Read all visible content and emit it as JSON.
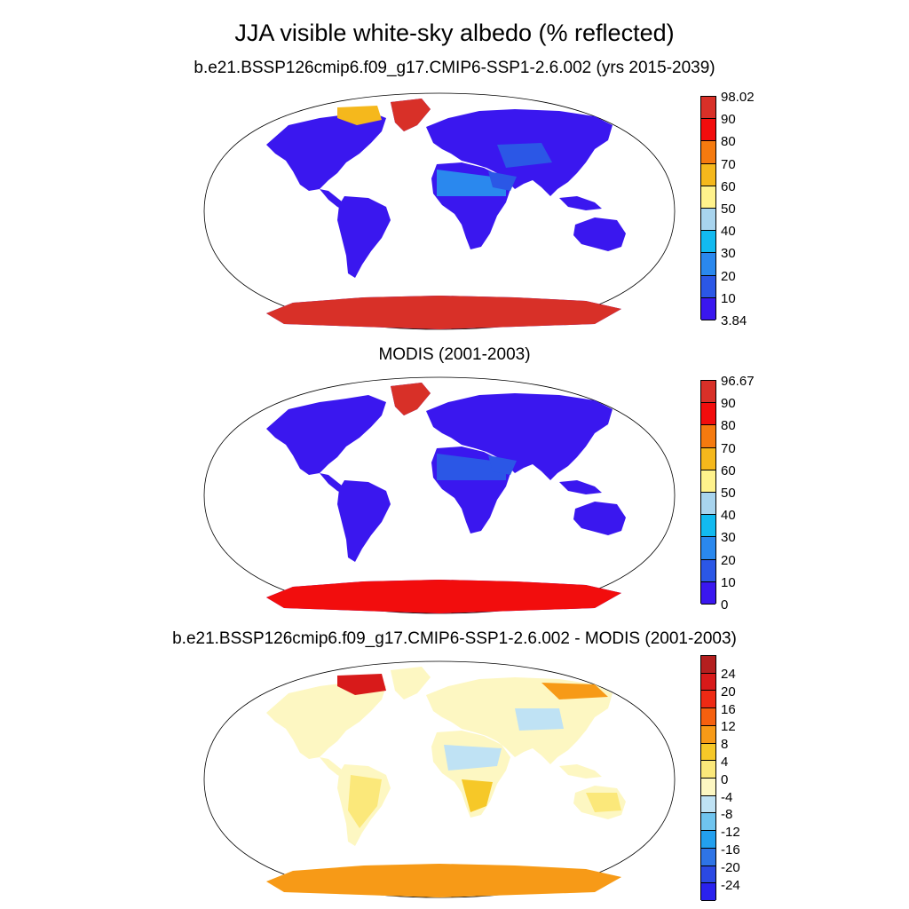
{
  "title": "JJA visible white-sky albedo (% reflected)",
  "panels": [
    {
      "title": "b.e21.BSSP126cmip6.f09_g17.CMIP6-SSP1-2.6.002 (yrs 2015-2039)",
      "labels": [
        "98.02",
        "90",
        "80",
        "70",
        "60",
        "50",
        "40",
        "30",
        "20",
        "10",
        "3.84"
      ],
      "colors": [
        "#d83028",
        "#f20d0d",
        "#f57a0f",
        "#f5b81c",
        "#fff28c",
        "#a8d4ee",
        "#12baf0",
        "#2a88ee",
        "#2b57e6",
        "#3a17ef"
      ]
    },
    {
      "title": "MODIS (2001-2003)",
      "labels": [
        "96.67",
        "90",
        "80",
        "70",
        "60",
        "50",
        "40",
        "30",
        "20",
        "10",
        "0"
      ],
      "colors": [
        "#d83028",
        "#f20d0d",
        "#f57a0f",
        "#f5b81c",
        "#fff28c",
        "#a8d4ee",
        "#12baf0",
        "#2a88ee",
        "#2b57e6",
        "#3a17ef"
      ]
    },
    {
      "title": "b.e21.BSSP126cmip6.f09_g17.CMIP6-SSP1-2.6.002 - MODIS (2001-2003)",
      "labels": [
        "24",
        "20",
        "16",
        "12",
        "8",
        "4",
        "0",
        "-4",
        "-8",
        "-12",
        "-16",
        "-20",
        "-24"
      ],
      "colors": [
        "#b41f1f",
        "#d81a1a",
        "#ee2a14",
        "#f5600f",
        "#f79a17",
        "#f6c828",
        "#fbe87a",
        "#fdf7c2",
        "#bfe2f4",
        "#6fc4ef",
        "#23a0ef",
        "#2e74e6",
        "#2b49e3",
        "#2a22ee"
      ]
    }
  ],
  "land_colors": {
    "panel1": {
      "land": "#3a17ef",
      "desert": "#2b57e6",
      "desert_hot": "#2a88ee",
      "ice": "#d83028"
    },
    "panel2": {
      "land": "#3a17ef",
      "desert": "#2b57e6",
      "desert_hot": "#2a88ee",
      "ice": "#f20d0d"
    },
    "panel3": {
      "land": "#fdf7c2",
      "warm": "#f6c828",
      "cool": "#bfe2f4",
      "ice": "#d81a1a"
    }
  }
}
